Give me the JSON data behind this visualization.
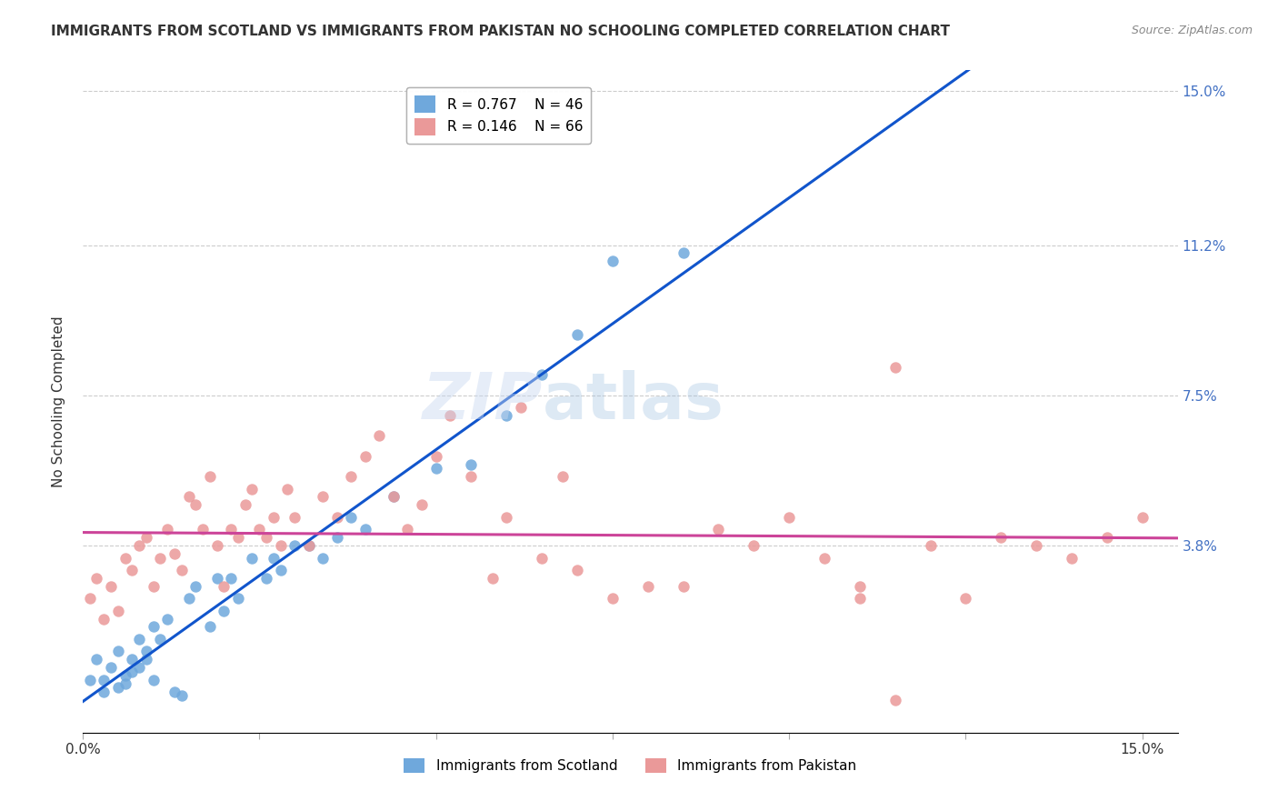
{
  "title": "IMMIGRANTS FROM SCOTLAND VS IMMIGRANTS FROM PAKISTAN NO SCHOOLING COMPLETED CORRELATION CHART",
  "source": "Source: ZipAtlas.com",
  "ylabel": "No Schooling Completed",
  "R_scotland": 0.767,
  "N_scotland": 46,
  "R_pakistan": 0.146,
  "N_pakistan": 66,
  "scotland_color": "#6fa8dc",
  "pakistan_color": "#ea9999",
  "scotland_line_color": "#1155cc",
  "pakistan_line_color": "#cc4499",
  "trend_line_color": "#aaaaaa",
  "watermark_zip": "ZIP",
  "watermark_atlas": "atlas",
  "xlim": [
    0.0,
    0.155
  ],
  "ylim": [
    -0.008,
    0.155
  ],
  "scotland_x": [
    0.001,
    0.002,
    0.003,
    0.003,
    0.004,
    0.005,
    0.005,
    0.006,
    0.006,
    0.007,
    0.007,
    0.008,
    0.008,
    0.009,
    0.009,
    0.01,
    0.01,
    0.011,
    0.012,
    0.013,
    0.014,
    0.015,
    0.016,
    0.018,
    0.019,
    0.02,
    0.021,
    0.022,
    0.024,
    0.026,
    0.027,
    0.028,
    0.03,
    0.032,
    0.034,
    0.036,
    0.038,
    0.04,
    0.044,
    0.05,
    0.055,
    0.06,
    0.065,
    0.07,
    0.075,
    0.085
  ],
  "scotland_y": [
    0.005,
    0.01,
    0.002,
    0.005,
    0.008,
    0.003,
    0.012,
    0.004,
    0.006,
    0.007,
    0.01,
    0.008,
    0.015,
    0.01,
    0.012,
    0.005,
    0.018,
    0.015,
    0.02,
    0.002,
    0.001,
    0.025,
    0.028,
    0.018,
    0.03,
    0.022,
    0.03,
    0.025,
    0.035,
    0.03,
    0.035,
    0.032,
    0.038,
    0.038,
    0.035,
    0.04,
    0.045,
    0.042,
    0.05,
    0.057,
    0.058,
    0.07,
    0.08,
    0.09,
    0.108,
    0.11
  ],
  "pakistan_x": [
    0.001,
    0.002,
    0.003,
    0.004,
    0.005,
    0.006,
    0.007,
    0.008,
    0.009,
    0.01,
    0.011,
    0.012,
    0.013,
    0.014,
    0.015,
    0.016,
    0.017,
    0.018,
    0.019,
    0.02,
    0.021,
    0.022,
    0.023,
    0.024,
    0.025,
    0.026,
    0.027,
    0.028,
    0.029,
    0.03,
    0.032,
    0.034,
    0.036,
    0.038,
    0.04,
    0.042,
    0.044,
    0.046,
    0.048,
    0.05,
    0.052,
    0.055,
    0.058,
    0.06,
    0.062,
    0.065,
    0.068,
    0.07,
    0.075,
    0.08,
    0.085,
    0.09,
    0.095,
    0.1,
    0.105,
    0.11,
    0.115,
    0.12,
    0.125,
    0.13,
    0.135,
    0.14,
    0.145,
    0.15,
    0.11,
    0.115
  ],
  "pakistan_y": [
    0.025,
    0.03,
    0.02,
    0.028,
    0.022,
    0.035,
    0.032,
    0.038,
    0.04,
    0.028,
    0.035,
    0.042,
    0.036,
    0.032,
    0.05,
    0.048,
    0.042,
    0.055,
    0.038,
    0.028,
    0.042,
    0.04,
    0.048,
    0.052,
    0.042,
    0.04,
    0.045,
    0.038,
    0.052,
    0.045,
    0.038,
    0.05,
    0.045,
    0.055,
    0.06,
    0.065,
    0.05,
    0.042,
    0.048,
    0.06,
    0.07,
    0.055,
    0.03,
    0.045,
    0.072,
    0.035,
    0.055,
    0.032,
    0.025,
    0.028,
    0.028,
    0.042,
    0.038,
    0.045,
    0.035,
    0.028,
    0.082,
    0.038,
    0.025,
    0.04,
    0.038,
    0.035,
    0.04,
    0.045,
    0.025,
    0.0
  ]
}
